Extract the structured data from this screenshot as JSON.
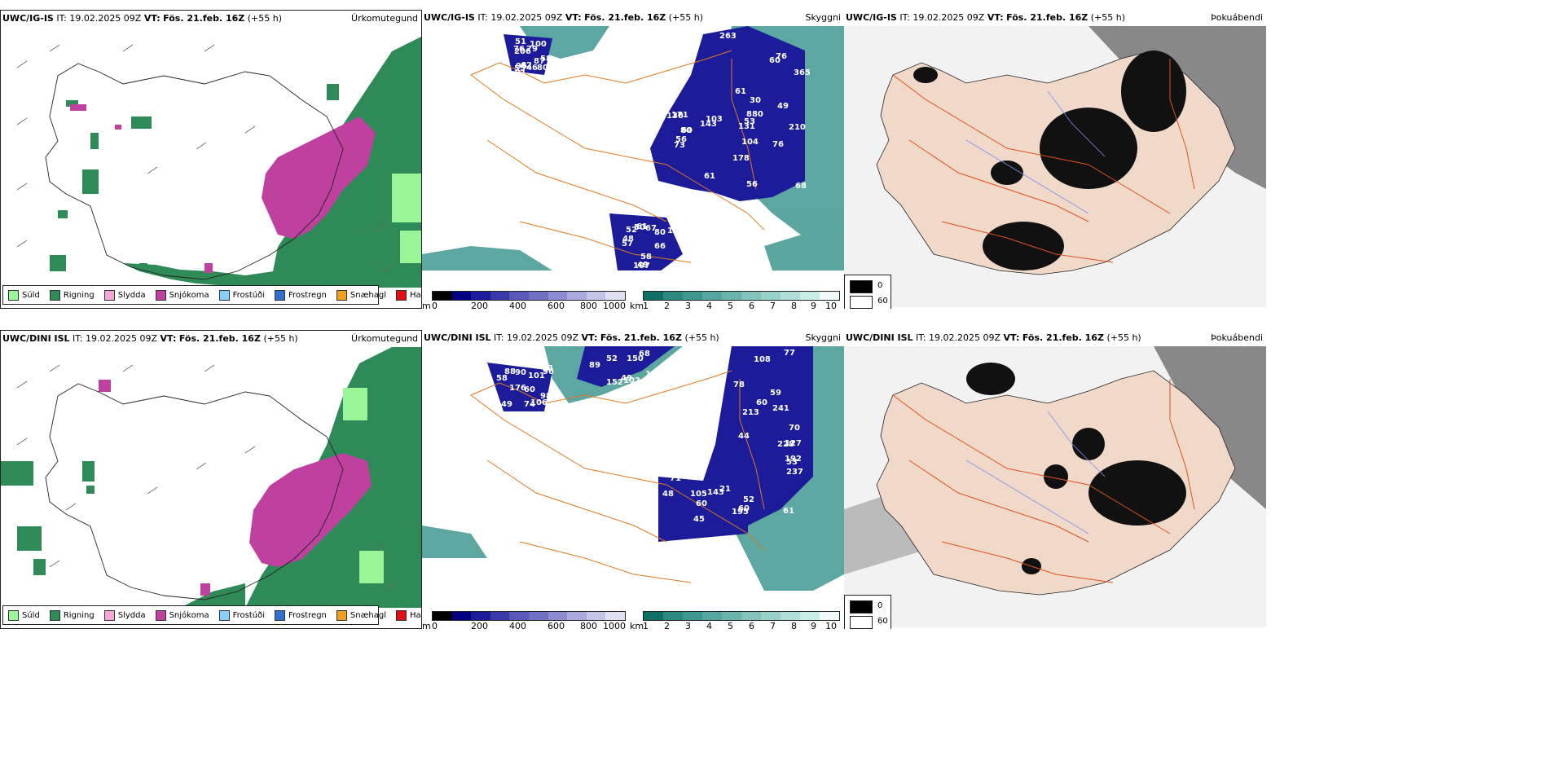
{
  "rows": [
    {
      "model": "UWC/IG-IS",
      "it_label": "IT:",
      "it_value": "19.02.2025 09Z",
      "vt_label": "VT:",
      "vt_value": "Fös. 21.feb. 16Z",
      "lead": "(+55 h)"
    },
    {
      "model": "UWC/DINI ISL",
      "it_label": "IT:",
      "it_value": "19.02.2025 09Z",
      "vt_label": "VT:",
      "vt_value": "Fös. 21.feb. 16Z",
      "lead": "(+55 h)"
    }
  ],
  "panel_titles": {
    "precip": "Úrkomutegund",
    "cloud": "Skyggni",
    "fog": "Þokuábendi"
  },
  "precip_legend": [
    {
      "label": "Súld",
      "color": "#98f598"
    },
    {
      "label": "Rigning",
      "color": "#2e8b57"
    },
    {
      "label": "Slydda",
      "color": "#f4a6d7"
    },
    {
      "label": "Snjókoma",
      "color": "#c040a0"
    },
    {
      "label": "Frostúði",
      "color": "#87cefa"
    },
    {
      "label": "Frostregn",
      "color": "#2f6fd0"
    },
    {
      "label": "Snæhagl",
      "color": "#f0a020"
    },
    {
      "label": "Haglél",
      "color": "#e01010"
    }
  ],
  "ceiling_bar": {
    "unit": "m",
    "ticks": [
      "0",
      "200",
      "400",
      "600",
      "800",
      "1000"
    ],
    "colors": [
      "#000000",
      "#000080",
      "#1c1c9a",
      "#3a3aaa",
      "#5858b8",
      "#7070c4",
      "#8c8cd0",
      "#a8a8dc",
      "#c4c4e8",
      "#e0e0f4"
    ]
  },
  "visibility_bar": {
    "unit": "km",
    "ticks": [
      "1",
      "2",
      "3",
      "4",
      "5",
      "6",
      "7",
      "8",
      "9",
      "10"
    ],
    "colors": [
      "#0f6e66",
      "#2a8a80",
      "#3f9890",
      "#55a69e",
      "#6bb4ac",
      "#82c2ba",
      "#99d0c8",
      "#b0ded6",
      "#c8ece6",
      "#f0fbf9"
    ]
  },
  "fog_legend": {
    "high": "0",
    "low": "60"
  },
  "cloud_labels_top": [
    "100",
    "880",
    "210",
    "62",
    "57",
    "60",
    "67",
    "68",
    "56",
    "53",
    "50",
    "80",
    "61",
    "56",
    "365",
    "60",
    "58",
    "52",
    "51",
    "87",
    "73",
    "46",
    "79",
    "76",
    "80",
    "61",
    "66",
    "61",
    "104",
    "107",
    "131",
    "91",
    "58",
    "96",
    "171",
    "76",
    "109",
    "130",
    "103",
    "143",
    "76",
    "206",
    "178",
    "263",
    "48",
    "30",
    "49",
    "49",
    "80",
    "55"
  ],
  "cloud_labels_bottom": [
    "74",
    "49",
    "89",
    "89",
    "237",
    "60",
    "96",
    "44",
    "60",
    "45",
    "60",
    "60",
    "52",
    "61",
    "48",
    "49",
    "58",
    "53",
    "59",
    "70",
    "98",
    "105",
    "102",
    "139",
    "101",
    "49",
    "61",
    "77",
    "52",
    "195",
    "68",
    "71",
    "90",
    "73",
    "152",
    "127",
    "106",
    "21",
    "78",
    "88",
    "143",
    "241",
    "228",
    "213",
    "150",
    "176",
    "192",
    "108"
  ]
}
